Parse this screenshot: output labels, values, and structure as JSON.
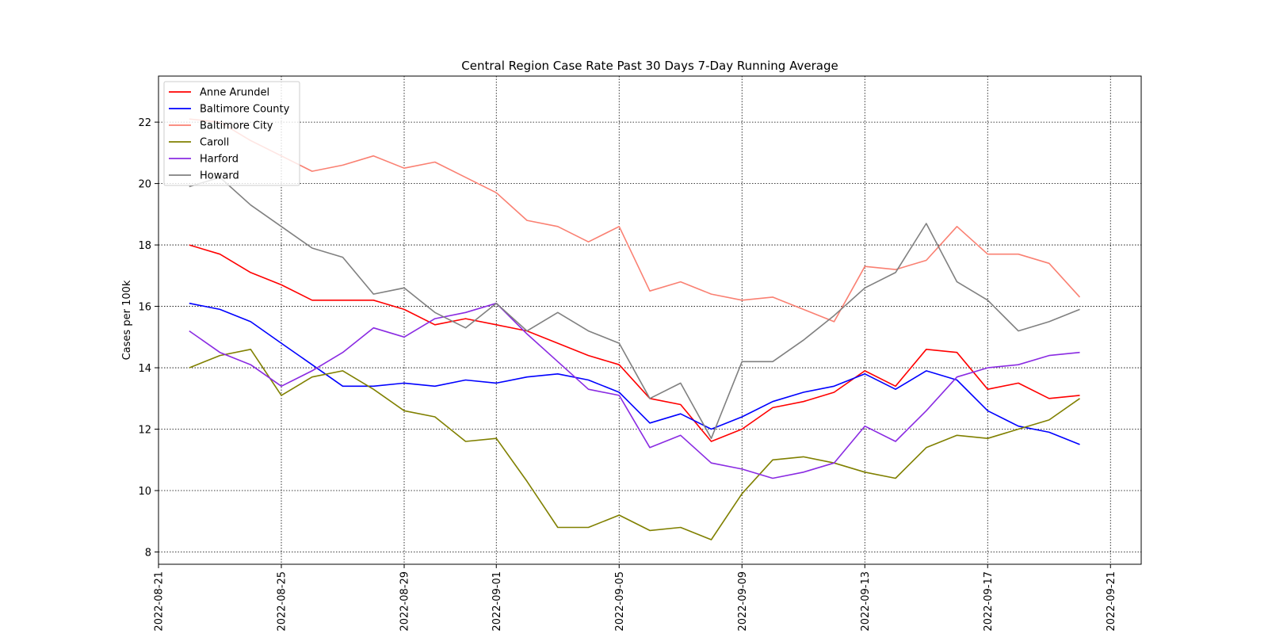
{
  "chart_data": {
    "type": "line",
    "title": "Central Region Case Rate  Past 30 Days 7-Day Running Average",
    "xlabel": "",
    "ylabel": "Cases per 100k",
    "ylim": [
      7.6,
      23.5
    ],
    "xlim": [
      "2022-08-21",
      "2022-09-22"
    ],
    "grid": true,
    "legend_position": "top-left",
    "x_tick_labels": [
      "2022-08-21",
      "2022-08-25",
      "2022-08-29",
      "2022-09-01",
      "2022-09-05",
      "2022-09-09",
      "2022-09-13",
      "2022-09-17",
      "2022-09-21"
    ],
    "y_ticks": [
      8,
      10,
      12,
      14,
      16,
      18,
      20,
      22
    ],
    "x": [
      "2022-08-22",
      "2022-08-23",
      "2022-08-24",
      "2022-08-25",
      "2022-08-26",
      "2022-08-27",
      "2022-08-28",
      "2022-08-29",
      "2022-08-30",
      "2022-08-31",
      "2022-09-01",
      "2022-09-02",
      "2022-09-03",
      "2022-09-04",
      "2022-09-05",
      "2022-09-06",
      "2022-09-07",
      "2022-09-08",
      "2022-09-09",
      "2022-09-10",
      "2022-09-11",
      "2022-09-12",
      "2022-09-13",
      "2022-09-14",
      "2022-09-15",
      "2022-09-16",
      "2022-09-17",
      "2022-09-18",
      "2022-09-19",
      "2022-09-20"
    ],
    "series": [
      {
        "name": "Anne Arundel",
        "color": "#ff0000",
        "values": [
          18.0,
          17.7,
          17.1,
          16.7,
          16.2,
          16.2,
          16.2,
          15.9,
          15.4,
          15.6,
          15.4,
          15.2,
          14.8,
          14.4,
          14.1,
          13.0,
          12.8,
          11.6,
          12.0,
          12.7,
          12.9,
          13.2,
          13.9,
          13.4,
          14.6,
          14.5,
          13.3,
          13.5,
          13.0,
          13.1
        ]
      },
      {
        "name": "Baltimore County",
        "color": "#0000ff",
        "values": [
          16.1,
          15.9,
          15.5,
          14.8,
          14.1,
          13.4,
          13.4,
          13.5,
          13.4,
          13.6,
          13.5,
          13.7,
          13.8,
          13.6,
          13.2,
          12.2,
          12.5,
          12.0,
          12.4,
          12.9,
          13.2,
          13.4,
          13.8,
          13.3,
          13.9,
          13.6,
          12.6,
          12.1,
          11.9,
          11.5
        ]
      },
      {
        "name": "Baltimore City",
        "color": "#fa8072",
        "values": [
          22.1,
          22.0,
          21.4,
          20.9,
          20.4,
          20.6,
          20.9,
          20.5,
          20.7,
          20.2,
          19.7,
          18.8,
          18.6,
          18.1,
          18.6,
          16.5,
          16.8,
          16.4,
          16.2,
          16.3,
          15.9,
          15.5,
          17.3,
          17.2,
          17.5,
          18.6,
          17.7,
          17.7,
          17.4,
          16.3
        ]
      },
      {
        "name": "Caroll",
        "color": "#808000",
        "values": [
          14.0,
          14.4,
          14.6,
          13.1,
          13.7,
          13.9,
          13.3,
          12.6,
          12.4,
          11.6,
          11.7,
          10.3,
          8.8,
          8.8,
          9.2,
          8.7,
          8.8,
          8.4,
          9.9,
          11.0,
          11.1,
          10.9,
          10.6,
          10.4,
          11.4,
          11.8,
          11.7,
          12.0,
          12.3,
          13.0
        ]
      },
      {
        "name": "Harford",
        "color": "#8a2be2",
        "values": [
          15.2,
          14.5,
          14.1,
          13.4,
          13.9,
          14.5,
          15.3,
          15.0,
          15.6,
          15.8,
          16.1,
          15.1,
          14.2,
          13.3,
          13.1,
          11.4,
          11.8,
          10.9,
          10.7,
          10.4,
          10.6,
          10.9,
          12.1,
          11.6,
          12.6,
          13.7,
          14.0,
          14.1,
          14.4,
          14.5
        ]
      },
      {
        "name": "Howard",
        "color": "#808080",
        "values": [
          19.9,
          20.2,
          19.3,
          18.6,
          17.9,
          17.6,
          16.4,
          16.6,
          15.8,
          15.3,
          16.1,
          15.2,
          15.8,
          15.2,
          14.8,
          13.0,
          13.5,
          11.7,
          14.2,
          14.2,
          14.9,
          15.7,
          16.6,
          17.1,
          18.7,
          16.8,
          16.2,
          15.2,
          15.5,
          15.9
        ]
      }
    ]
  }
}
